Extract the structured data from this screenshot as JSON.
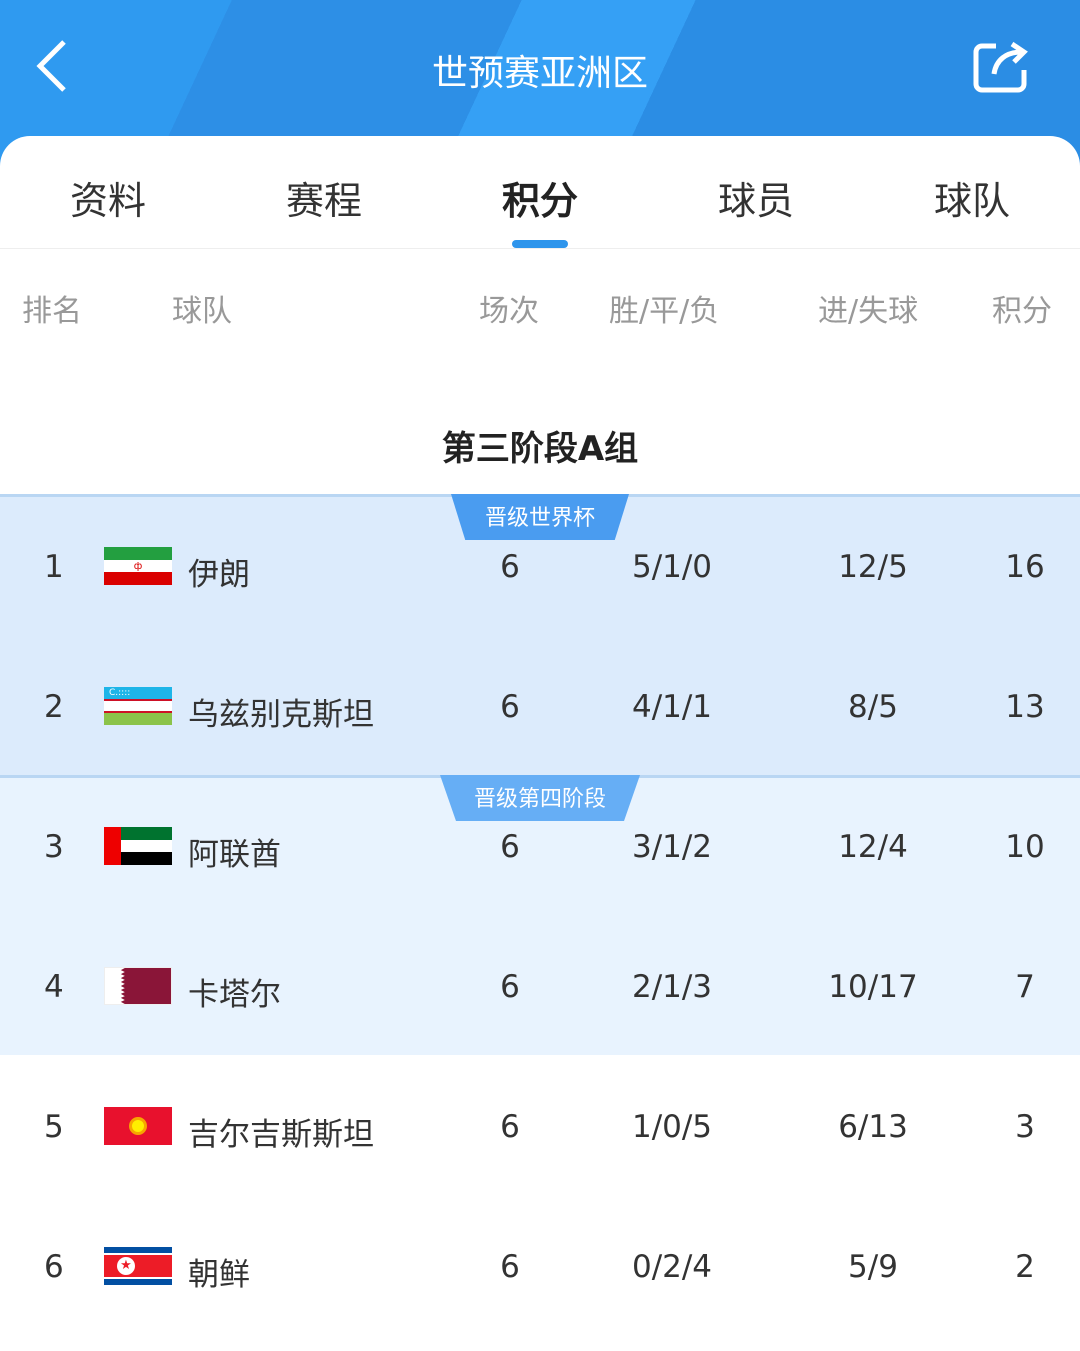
{
  "header": {
    "title": "世预赛亚洲区",
    "back_icon": "chevron-left-icon",
    "share_icon": "share-icon"
  },
  "tabs": [
    {
      "label": "资料"
    },
    {
      "label": "赛程"
    },
    {
      "label": "积分",
      "active": true
    },
    {
      "label": "球员"
    },
    {
      "label": "球队"
    }
  ],
  "columns": {
    "rank": "排名",
    "team": "球队",
    "played": "场次",
    "wdl": "胜/平/负",
    "goals": "进/失球",
    "points": "积分"
  },
  "group_title": "第三阶段A组",
  "zones": [
    {
      "label": "晋级世界杯",
      "color": "#4a9cf0",
      "bg": "#dcebfc"
    },
    {
      "label": "晋级第四阶段",
      "color": "#66aef5",
      "bg": "#e8f3fe"
    }
  ],
  "rows": [
    {
      "rank": "1",
      "team": "伊朗",
      "flag": "iran",
      "played": "6",
      "wdl": "5/1/0",
      "goals": "12/5",
      "points": "16"
    },
    {
      "rank": "2",
      "team": "乌兹别克斯坦",
      "flag": "uzbekistan",
      "played": "6",
      "wdl": "4/1/1",
      "goals": "8/5",
      "points": "13"
    },
    {
      "rank": "3",
      "team": "阿联酋",
      "flag": "uae",
      "played": "6",
      "wdl": "3/1/2",
      "goals": "12/4",
      "points": "10"
    },
    {
      "rank": "4",
      "team": "卡塔尔",
      "flag": "qatar",
      "played": "6",
      "wdl": "2/1/3",
      "goals": "10/17",
      "points": "7"
    },
    {
      "rank": "5",
      "team": "吉尔吉斯斯坦",
      "flag": "kyrgyzstan",
      "played": "6",
      "wdl": "1/0/5",
      "goals": "6/13",
      "points": "3"
    },
    {
      "rank": "6",
      "team": "朝鲜",
      "flag": "north-korea",
      "played": "6",
      "wdl": "0/2/4",
      "goals": "5/9",
      "points": "2"
    }
  ]
}
